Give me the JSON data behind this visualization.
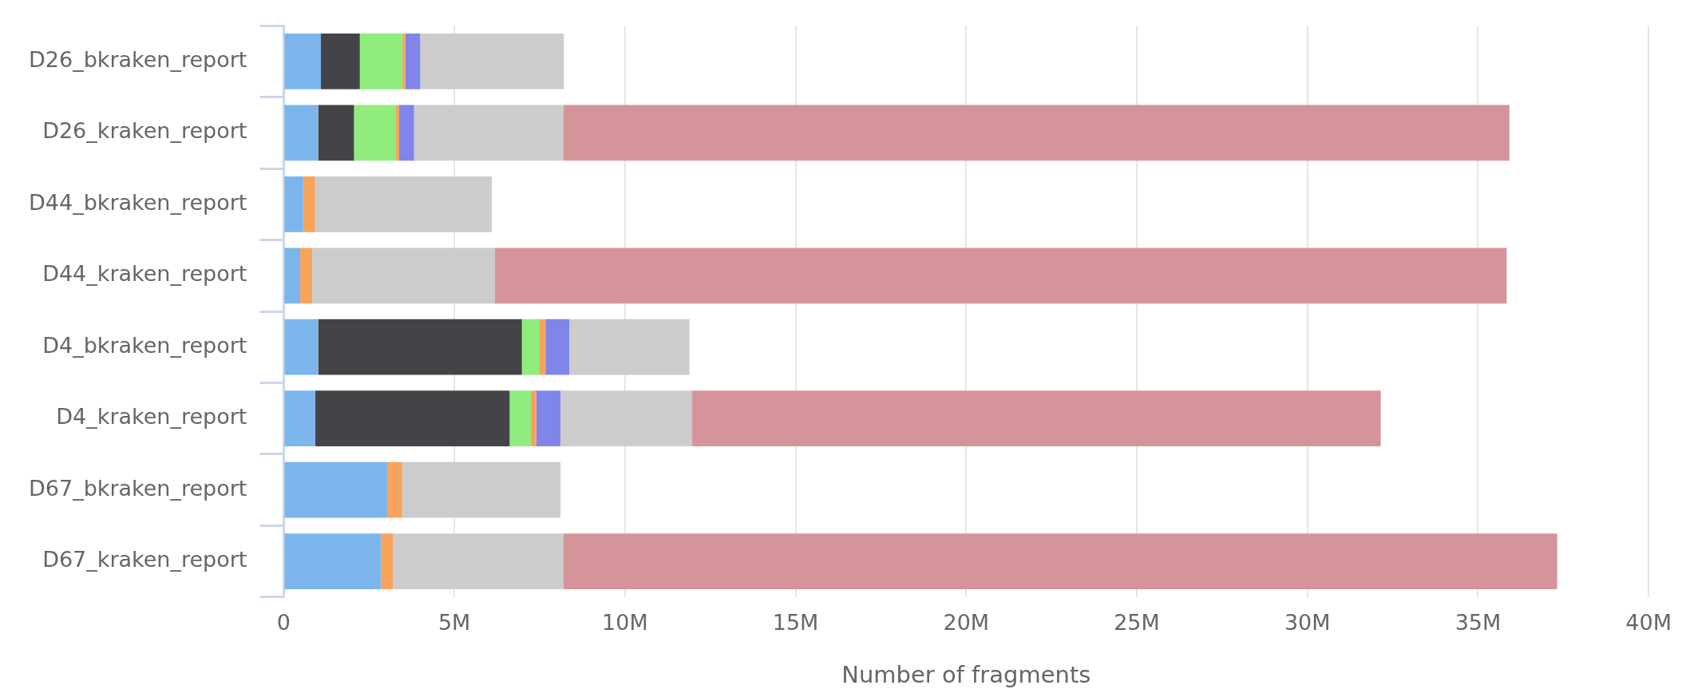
{
  "chart_data": {
    "type": "bar",
    "orientation": "horizontal",
    "stacked": true,
    "xlabel": "Number of fragments",
    "categories": [
      "D26_bkraken_report",
      "D26_kraken_report",
      "D44_bkraken_report",
      "D44_kraken_report",
      "D4_bkraken_report",
      "D4_kraken_report",
      "D67_bkraken_report",
      "D67_kraken_report"
    ],
    "series": [
      {
        "color": "#7cb5ec",
        "values": [
          1090000,
          1010000,
          570000,
          480000,
          1010000,
          920000,
          3030000,
          2850000
        ]
      },
      {
        "color": "#434348",
        "values": [
          1140000,
          1050000,
          null,
          null,
          5970000,
          5700000,
          null,
          null
        ]
      },
      {
        "color": "#90ed7d",
        "values": [
          1250000,
          1230000,
          null,
          null,
          520000,
          620000,
          null,
          null
        ]
      },
      {
        "color": "#f7a35c",
        "values": [
          80000,
          90000,
          350000,
          350000,
          170000,
          160000,
          440000,
          350000
        ]
      },
      {
        "color": "#8085e9",
        "values": [
          440000,
          440000,
          null,
          null,
          700000,
          710000,
          null,
          null
        ]
      },
      {
        "color": "#cccccc",
        "values": [
          4210000,
          4380000,
          5180000,
          5360000,
          3520000,
          3860000,
          4640000,
          5000000
        ]
      },
      {
        "color": "#d5939a",
        "values": [
          null,
          27720000,
          null,
          29650000,
          null,
          20180000,
          null,
          29120000
        ]
      }
    ],
    "xlim": [
      0,
      40000000
    ],
    "xticks": [
      {
        "value": 0,
        "label": "0"
      },
      {
        "value": 5000000,
        "label": "5M"
      },
      {
        "value": 10000000,
        "label": "10M"
      },
      {
        "value": 15000000,
        "label": "15M"
      },
      {
        "value": 20000000,
        "label": "20M"
      },
      {
        "value": 25000000,
        "label": "25M"
      },
      {
        "value": 30000000,
        "label": "30M"
      },
      {
        "value": 35000000,
        "label": "35M"
      },
      {
        "value": 40000000,
        "label": "40M"
      }
    ],
    "grid": "x",
    "legend": false
  }
}
